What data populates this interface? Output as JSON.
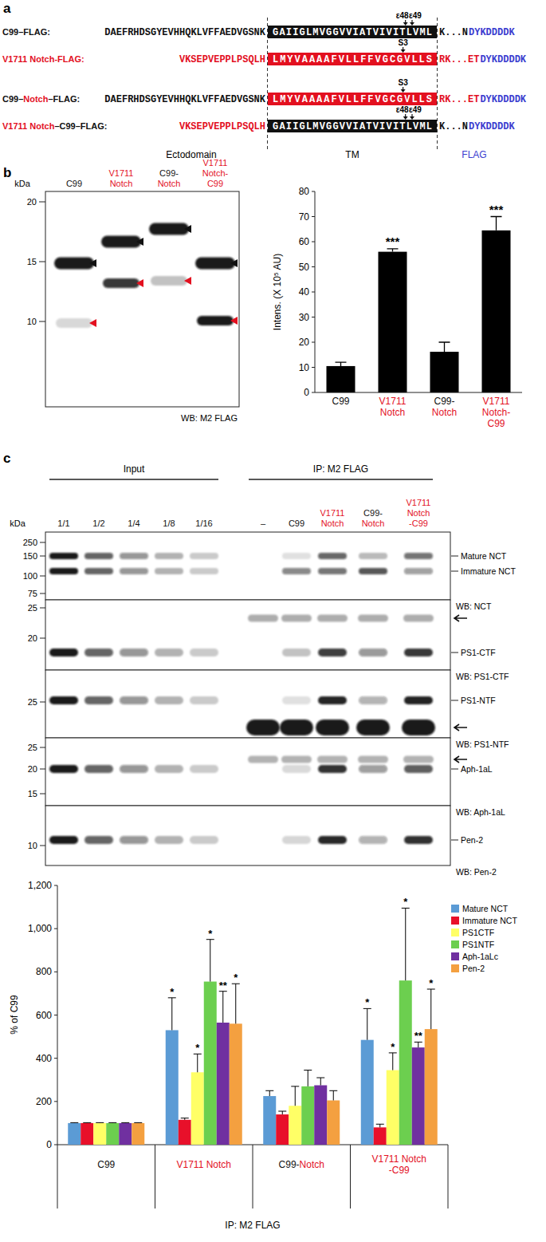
{
  "panel_a": {
    "letter": "a",
    "rows": [
      {
        "label": "C99–FLAG:",
        "ectodomain": "DAEFRHDSGYEVHHQKLVFFAEDVGSNK",
        "tm": "GAIIGLMVGGVVIATVIVITLVML",
        "juxta": "K...N",
        "flag": "DYKDDDDK",
        "sites": [
          {
            "label": "ε48",
            "after": 20
          },
          {
            "label": "ε49",
            "after": 21
          }
        ]
      },
      {
        "label": "V1711 Notch-FLAG:",
        "ectodomain": "VKSEPVEPPLPSQLH",
        "tm": "LMYVAAAAFVLLFFVGCGVLLS",
        "juxta": "RK...ET",
        "flag": "DYKDDDDK",
        "sites": [
          {
            "label": "S3",
            "after": 18
          }
        ]
      },
      {
        "label": "C99–Notch–FLAG:",
        "ectodomain": "DAEFRHDSGYEVHHQKLVFFAEDVGSNK",
        "tm": "LMYVAAAAFVLLFFVGCGVLLS",
        "juxta": "RK...ET",
        "flag": "DYKDDDDK",
        "sites": [
          {
            "label": "S3",
            "after": 18
          }
        ]
      },
      {
        "label": "V1711 Notch–C99–FLAG:",
        "ectodomain": "VKSEPVEPPLPSQLH",
        "tm": "GAIIGLMVGGVVIATVIVITLVML",
        "juxta": "K...N",
        "flag": "DYKDDDDK",
        "sites": [
          {
            "label": "ε48",
            "after": 20
          },
          {
            "label": "ε49",
            "after": 21
          }
        ]
      }
    ],
    "regions": [
      "Ectodomain",
      "TM",
      "FLAG"
    ]
  },
  "blot_b": {
    "letter": "b",
    "kda_label": "kDa",
    "markers": [
      20,
      15,
      10
    ],
    "lanes": [
      "C99",
      "V1711\nNotch",
      "C99-\nNotch",
      "V1711\nNotch-\nC99"
    ],
    "wb": "WB: M2 FLAG"
  },
  "blot_c": {
    "letter": "c",
    "kda_label": "kDa",
    "groups": [
      "Input",
      "IP: M2 FLAG"
    ],
    "lanes": [
      "1/1",
      "1/2",
      "1/4",
      "1/8",
      "1/16",
      "–",
      "C99",
      "V1711\nNotch",
      "C99-\nNotch",
      "V1711\nNotch\n-C99"
    ],
    "blots": [
      {
        "wb": "WB: NCT",
        "markers": [
          250,
          150,
          100,
          75
        ],
        "bands": [
          "Mature NCT",
          "Immature NCT"
        ]
      },
      {
        "wb": "WB: PS1-CTF",
        "markers": [
          25,
          20
        ],
        "bands": [
          "PS1-CTF"
        ]
      },
      {
        "wb": "WB: PS1-NTF",
        "markers": [
          25
        ],
        "bands": [
          "PS1-NTF"
        ]
      },
      {
        "wb": "WB: Aph-1aL",
        "markers": [
          25,
          20,
          15
        ],
        "bands": [
          "Aph-1aL"
        ]
      },
      {
        "wb": "WB: Pen-2",
        "markers": [
          10
        ],
        "bands": [
          "Pen-2"
        ]
      }
    ]
  },
  "chart_data": [
    {
      "type": "bar",
      "y_label": "Intens. (X 10⁵ AU)",
      "categories": [
        "C99",
        "V1711\nNotch",
        "C99-\nNotch",
        "V1711\nNotch-\nC99"
      ],
      "values": [
        10.5,
        56,
        16.2,
        64.5
      ],
      "errors": [
        1.5,
        1.2,
        3.8,
        5.5
      ],
      "color": "#000000",
      "ylim": [
        0,
        80
      ],
      "yticks": [
        0,
        10,
        20,
        30,
        40,
        50,
        60,
        70,
        80
      ],
      "annotations": [
        {
          "text": "***",
          "category": "V1711\nNotch"
        },
        {
          "text": "***",
          "category": "V1711\nNotch-\nC99"
        }
      ]
    },
    {
      "type": "bar",
      "y_label": "% of C99",
      "x_label": "IP: M2 FLAG",
      "categories": [
        "C99",
        "V1711 Notch",
        "C99-Notch",
        "V1711 Notch\n-C99"
      ],
      "series": [
        {
          "name": "Mature NCT",
          "color": "#5b9bd5",
          "values": [
            100,
            530,
            225,
            485
          ],
          "errors": [
            2,
            150,
            25,
            145
          ]
        },
        {
          "name": "Immature NCT",
          "color": "#e8102a",
          "values": [
            100,
            115,
            140,
            80
          ],
          "errors": [
            2,
            8,
            15,
            15
          ]
        },
        {
          "name": "PS1CTF",
          "color": "#ffff66",
          "values": [
            100,
            335,
            180,
            345
          ],
          "errors": [
            2,
            85,
            90,
            80
          ]
        },
        {
          "name": "PS1NTF",
          "color": "#6ccf4f",
          "values": [
            100,
            755,
            270,
            760
          ],
          "errors": [
            2,
            195,
            75,
            335
          ]
        },
        {
          "name": "Aph-1aLc",
          "color": "#7030a0",
          "values": [
            100,
            565,
            275,
            450
          ],
          "errors": [
            2,
            145,
            35,
            25
          ]
        },
        {
          "name": "Pen-2",
          "color": "#f4a040",
          "values": [
            100,
            560,
            205,
            535
          ],
          "errors": [
            2,
            185,
            45,
            185
          ]
        }
      ],
      "ylim": [
        0,
        1200
      ],
      "yticks": [
        0,
        200,
        400,
        600,
        800,
        {
          "value": 1000,
          "label": "1,000"
        },
        {
          "value": 1200,
          "label": "1,200"
        }
      ],
      "legend": "right",
      "annotations": [
        {
          "text": "*",
          "series": "Mature NCT",
          "category": "V1711 Notch"
        },
        {
          "text": "*",
          "series": "PS1CTF",
          "category": "V1711 Notch"
        },
        {
          "text": "*",
          "series": "PS1NTF",
          "category": "V1711 Notch"
        },
        {
          "text": "**",
          "series": "Aph-1aLc",
          "category": "V1711 Notch"
        },
        {
          "text": "*",
          "series": "Pen-2",
          "category": "V1711 Notch"
        },
        {
          "text": "*",
          "series": "Mature NCT",
          "category": "V1711 Notch\n-C99"
        },
        {
          "text": "*",
          "series": "PS1CTF",
          "category": "V1711 Notch\n-C99"
        },
        {
          "text": "*",
          "series": "PS1NTF",
          "category": "V1711 Notch\n-C99"
        },
        {
          "text": "**",
          "series": "Aph-1aLc",
          "category": "V1711 Notch\n-C99"
        },
        {
          "text": "*",
          "series": "Pen-2",
          "category": "V1711 Notch\n-C99"
        }
      ]
    }
  ]
}
